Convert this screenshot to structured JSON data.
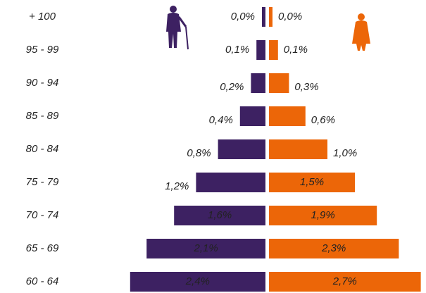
{
  "chart_data": {
    "type": "bar",
    "orientation": "horizontal",
    "categories": [
      "+ 100",
      "95 - 99",
      "90 - 94",
      "85 - 89",
      "80 - 84",
      "75 - 79",
      "70 - 74",
      "65 - 69",
      "60 - 64"
    ],
    "series": [
      {
        "color": "#3d2162",
        "values": [
          0.0,
          0.1,
          0.2,
          0.4,
          0.8,
          1.2,
          1.6,
          2.1,
          2.4
        ],
        "value_labels": [
          "0,0%",
          "0,1%",
          "0,2%",
          "0,4%",
          "0,8%",
          "1,2%",
          "1,6%",
          "2,1%",
          "2,4%"
        ]
      },
      {
        "color": "#ec6608",
        "values": [
          0.0,
          0.1,
          0.3,
          0.6,
          1.0,
          1.5,
          1.9,
          2.3,
          2.7
        ],
        "value_labels": [
          "0,0%",
          "0,1%",
          "0,3%",
          "0,6%",
          "1,0%",
          "1,5%",
          "1,9%",
          "2,3%",
          "2,7%"
        ]
      }
    ]
  }
}
